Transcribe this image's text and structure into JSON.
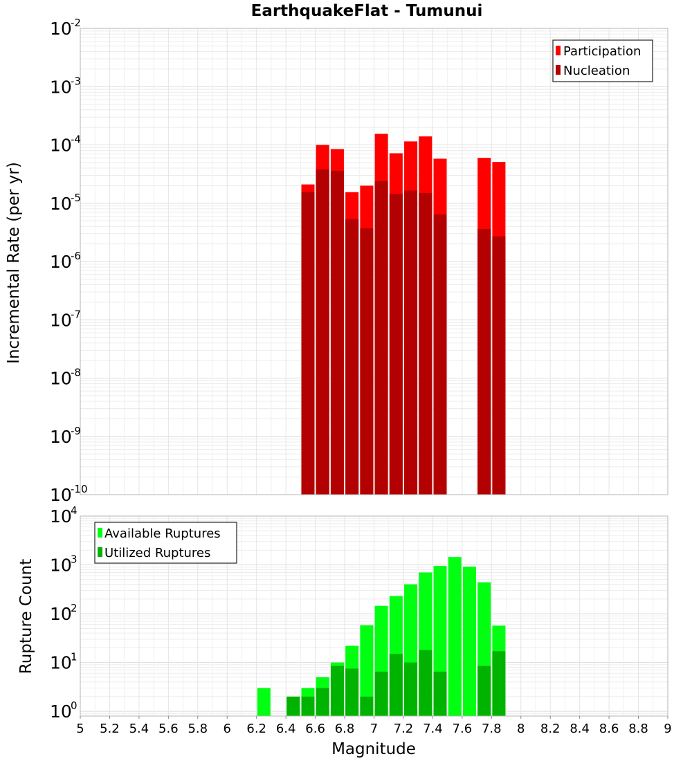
{
  "title": "EarthquakeFlat - Tumunui",
  "colors": {
    "participation": "#ff0000",
    "nucleation": "#b30000",
    "available": "#00ff11",
    "utilized": "#00b300"
  },
  "chart_data": [
    {
      "type": "bar",
      "panel": "top",
      "ylabel": "Incremental Rate (per yr)",
      "yscale": "log",
      "ylim": [
        1e-10,
        0.01
      ],
      "xlim": [
        5,
        9
      ],
      "y_ticks": [
        {
          "base": "10",
          "exp": "-10"
        },
        {
          "base": "10",
          "exp": "-9"
        },
        {
          "base": "10",
          "exp": "-8"
        },
        {
          "base": "10",
          "exp": "-7"
        },
        {
          "base": "10",
          "exp": "-6"
        },
        {
          "base": "10",
          "exp": "-5"
        },
        {
          "base": "10",
          "exp": "-4"
        },
        {
          "base": "10",
          "exp": "-3"
        },
        {
          "base": "10",
          "exp": "-2"
        }
      ],
      "legend": {
        "placement": "top-right",
        "entries": [
          "Participation",
          "Nucleation"
        ]
      },
      "grid": true,
      "series": [
        {
          "name": "Participation",
          "x": [
            6.55,
            6.65,
            6.75,
            6.85,
            6.95,
            7.05,
            7.15,
            7.25,
            7.35,
            7.45,
            7.75,
            7.85
          ],
          "values": [
            2.1e-05,
            0.0001,
            8.5e-05,
            1.55e-05,
            2e-05,
            0.000155,
            7.2e-05,
            0.000115,
            0.00014,
            5.8e-05,
            6e-05,
            5.1e-05
          ]
        },
        {
          "name": "Nucleation",
          "x": [
            6.55,
            6.65,
            6.75,
            6.85,
            6.95,
            7.05,
            7.15,
            7.25,
            7.35,
            7.45,
            7.75,
            7.85
          ],
          "values": [
            1.55e-05,
            3.8e-05,
            3.6e-05,
            5.3e-06,
            3.7e-06,
            2.4e-05,
            1.45e-05,
            1.65e-05,
            1.5e-05,
            6.4e-06,
            3.6e-06,
            2.7e-06
          ]
        }
      ]
    },
    {
      "type": "bar",
      "panel": "bottom",
      "ylabel": "Rupture Count",
      "xlabel": "Magnitude",
      "yscale": "log",
      "ylim": [
        0.8,
        10000
      ],
      "xlim": [
        5,
        9
      ],
      "x_ticks": [
        "5",
        "5.2",
        "5.4",
        "5.6",
        "5.8",
        "6",
        "6.2",
        "6.4",
        "6.6",
        "6.8",
        "7",
        "7.2",
        "7.4",
        "7.6",
        "7.8",
        "8",
        "8.2",
        "8.4",
        "8.6",
        "8.8",
        "9"
      ],
      "y_ticks": [
        {
          "base": "10",
          "exp": "0"
        },
        {
          "base": "10",
          "exp": "1"
        },
        {
          "base": "10",
          "exp": "2"
        },
        {
          "base": "10",
          "exp": "3"
        },
        {
          "base": "10",
          "exp": "4"
        }
      ],
      "legend": {
        "placement": "top-left",
        "entries": [
          "Available Ruptures",
          "Utilized Ruptures"
        ]
      },
      "grid": true,
      "series": [
        {
          "name": "Available Ruptures",
          "x": [
            6.25,
            6.45,
            6.55,
            6.65,
            6.75,
            6.85,
            6.95,
            7.05,
            7.15,
            7.25,
            7.35,
            7.45,
            7.55,
            7.65,
            7.75,
            7.85
          ],
          "values": [
            3,
            2,
            3,
            5,
            10,
            22,
            58,
            145,
            230,
            400,
            700,
            950,
            1450,
            920,
            440,
            57
          ]
        },
        {
          "name": "Utilized Ruptures",
          "x": [
            6.45,
            6.55,
            6.65,
            6.75,
            6.85,
            6.95,
            7.05,
            7.15,
            7.25,
            7.35,
            7.45,
            7.75,
            7.85
          ],
          "values": [
            2,
            2,
            3,
            8.5,
            7.5,
            2,
            6.5,
            15,
            10,
            18,
            6.5,
            8.5,
            17
          ]
        }
      ]
    }
  ]
}
